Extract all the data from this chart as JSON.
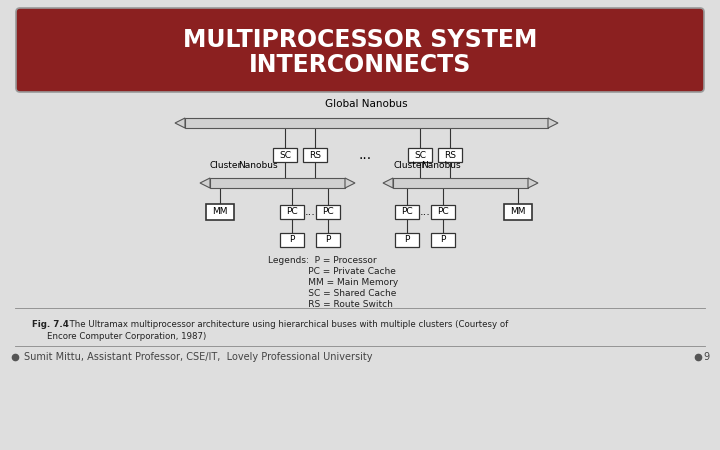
{
  "title_line1": "MULTIPROCESSOR SYSTEM",
  "title_line2": "INTERCONNECTS",
  "title_bg_color": "#8B2020",
  "title_text_color": "#FFFFFF",
  "slide_bg": "#DEDEDE",
  "footer_text": "Sumit Mittu, Assistant Professor, CSE/IT,  Lovely Professional University",
  "footer_number": "9",
  "global_bus_label": "Global Nanobus",
  "cluster_bus_label": "Cluster  Nanobus",
  "box_bg": "#FFFFFF",
  "box_border": "#333333",
  "bus_fill": "#D0D0D0",
  "bus_border": "#555555",
  "legend_lines": [
    "Legends:  P = Processor",
    "              PC = Private Cache",
    "              MM = Main Memory",
    "              SC = Shared Cache",
    "              RS = Route Switch"
  ],
  "caption_bold": "Fig. 7.4",
  "caption_rest": "  The Ultramax multiprocessor architecture using hierarchical buses with multiple clusters (Courtesy of",
  "caption_line2": "Encore Computer Corporation, 1987)"
}
